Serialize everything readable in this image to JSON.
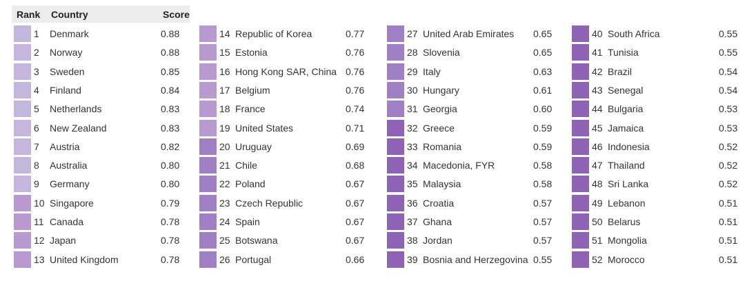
{
  "header": {
    "rank": "Rank",
    "country": "Country",
    "score": "Score"
  },
  "columns": [
    {
      "rows": [
        {
          "rank": "1",
          "country": "Denmark",
          "score": "0.88",
          "color": "#c5b6dd"
        },
        {
          "rank": "2",
          "country": "Norway",
          "score": "0.88",
          "color": "#c5b6dd"
        },
        {
          "rank": "3",
          "country": "Sweden",
          "score": "0.85",
          "color": "#c5b6dd"
        },
        {
          "rank": "4",
          "country": "Finland",
          "score": "0.84",
          "color": "#c5b6dd"
        },
        {
          "rank": "5",
          "country": "Netherlands",
          "score": "0.83",
          "color": "#c5b6dd"
        },
        {
          "rank": "6",
          "country": "New Zealand",
          "score": "0.83",
          "color": "#c5b6dd"
        },
        {
          "rank": "7",
          "country": "Austria",
          "score": "0.82",
          "color": "#c5b6dd"
        },
        {
          "rank": "8",
          "country": "Australia",
          "score": "0.80",
          "color": "#c5b6dd"
        },
        {
          "rank": "9",
          "country": "Germany",
          "score": "0.80",
          "color": "#c5b6dd"
        },
        {
          "rank": "10",
          "country": "Singapore",
          "score": "0.79",
          "color": "#b899d0"
        },
        {
          "rank": "11",
          "country": "Canada",
          "score": "0.78",
          "color": "#b899d0"
        },
        {
          "rank": "12",
          "country": "Japan",
          "score": "0.78",
          "color": "#b899d0"
        },
        {
          "rank": "13",
          "country": "United Kingdom",
          "score": "0.78",
          "color": "#b899d0"
        }
      ]
    },
    {
      "rows": [
        {
          "rank": "14",
          "country": "Republic of Korea",
          "score": "0.77",
          "color": "#b899d0"
        },
        {
          "rank": "15",
          "country": "Estonia",
          "score": "0.76",
          "color": "#b899d0"
        },
        {
          "rank": "16",
          "country": "Hong Kong SAR, China",
          "score": "0.76",
          "color": "#b899d0"
        },
        {
          "rank": "17",
          "country": "Belgium",
          "score": "0.76",
          "color": "#b899d0"
        },
        {
          "rank": "18",
          "country": "France",
          "score": "0.74",
          "color": "#b899d0"
        },
        {
          "rank": "19",
          "country": "United States",
          "score": "0.71",
          "color": "#b899d0"
        },
        {
          "rank": "20",
          "country": "Uruguay",
          "score": "0.69",
          "color": "#a07fc4"
        },
        {
          "rank": "21",
          "country": "Chile",
          "score": "0.68",
          "color": "#a07fc4"
        },
        {
          "rank": "22",
          "country": "Poland",
          "score": "0.67",
          "color": "#a07fc4"
        },
        {
          "rank": "23",
          "country": "Czech Republic",
          "score": "0.67",
          "color": "#a07fc4"
        },
        {
          "rank": "24",
          "country": "Spain",
          "score": "0.67",
          "color": "#a07fc4"
        },
        {
          "rank": "25",
          "country": "Botswana",
          "score": "0.67",
          "color": "#a07fc4"
        },
        {
          "rank": "26",
          "country": "Portugal",
          "score": "0.66",
          "color": "#a07fc4"
        }
      ]
    },
    {
      "rows": [
        {
          "rank": "27",
          "country": "United Arab Emirates",
          "score": "0.65",
          "color": "#a07fc4"
        },
        {
          "rank": "28",
          "country": "Slovenia",
          "score": "0.65",
          "color": "#a07fc4"
        },
        {
          "rank": "29",
          "country": "Italy",
          "score": "0.63",
          "color": "#a07fc4"
        },
        {
          "rank": "30",
          "country": "Hungary",
          "score": "0.61",
          "color": "#a07fc4"
        },
        {
          "rank": "31",
          "country": "Georgia",
          "score": "0.60",
          "color": "#a07fc4"
        },
        {
          "rank": "32",
          "country": "Greece",
          "score": "0.59",
          "color": "#8e62b5"
        },
        {
          "rank": "33",
          "country": "Romania",
          "score": "0.59",
          "color": "#8e62b5"
        },
        {
          "rank": "34",
          "country": "Macedonia, FYR",
          "score": "0.58",
          "color": "#8e62b5"
        },
        {
          "rank": "35",
          "country": "Malaysia",
          "score": "0.58",
          "color": "#8e62b5"
        },
        {
          "rank": "36",
          "country": "Croatia",
          "score": "0.57",
          "color": "#8e62b5"
        },
        {
          "rank": "37",
          "country": "Ghana",
          "score": "0.57",
          "color": "#8e62b5"
        },
        {
          "rank": "38",
          "country": "Jordan",
          "score": "0.57",
          "color": "#8e62b5"
        },
        {
          "rank": "39",
          "country": "Bosnia and Herzegovina",
          "score": "0.55",
          "color": "#8e62b5"
        }
      ]
    },
    {
      "rows": [
        {
          "rank": "40",
          "country": "South Africa",
          "score": "0.55",
          "color": "#8e62b5"
        },
        {
          "rank": "41",
          "country": "Tunisia",
          "score": "0.55",
          "color": "#8e62b5"
        },
        {
          "rank": "42",
          "country": "Brazil",
          "score": "0.54",
          "color": "#8e62b5"
        },
        {
          "rank": "43",
          "country": "Senegal",
          "score": "0.54",
          "color": "#8e62b5"
        },
        {
          "rank": "44",
          "country": "Bulgaria",
          "score": "0.53",
          "color": "#8e62b5"
        },
        {
          "rank": "45",
          "country": "Jamaica",
          "score": "0.53",
          "color": "#8e62b5"
        },
        {
          "rank": "46",
          "country": "Indonesia",
          "score": "0.52",
          "color": "#8e62b5"
        },
        {
          "rank": "47",
          "country": "Thailand",
          "score": "0.52",
          "color": "#8e62b5"
        },
        {
          "rank": "48",
          "country": "Sri Lanka",
          "score": "0.52",
          "color": "#8e62b5"
        },
        {
          "rank": "49",
          "country": "Lebanon",
          "score": "0.51",
          "color": "#8e62b5"
        },
        {
          "rank": "50",
          "country": "Belarus",
          "score": "0.51",
          "color": "#8e62b5"
        },
        {
          "rank": "51",
          "country": "Mongolia",
          "score": "0.51",
          "color": "#8e62b5"
        },
        {
          "rank": "52",
          "country": "Morocco",
          "score": "0.51",
          "color": "#8e62b5"
        }
      ]
    }
  ]
}
